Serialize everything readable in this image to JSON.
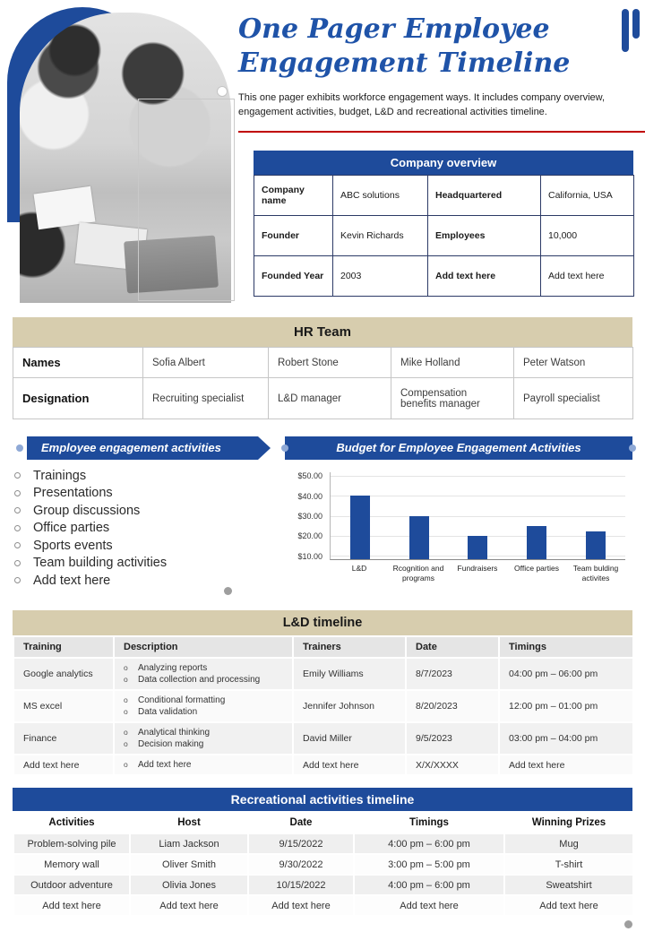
{
  "header": {
    "title_line1": "One Pager Employee",
    "title_line2": "Engagement Timeline",
    "description": "This one pager exhibits workforce engagement ways. It includes company overview, engagement activities, budget, L&D and recreational activities timeline."
  },
  "company_overview": {
    "title": "Company overview",
    "rows": [
      [
        "Company name",
        "ABC solutions",
        "Headquartered",
        "California, USA"
      ],
      [
        "Founder",
        "Kevin Richards",
        "Employees",
        "10,000"
      ],
      [
        "Founded Year",
        "2003",
        "Add text here",
        "Add text here"
      ]
    ]
  },
  "hr_team": {
    "title": "HR Team",
    "names_label": "Names",
    "names": [
      "Sofia Albert",
      "Robert Stone",
      "Mike Holland",
      "Peter Watson"
    ],
    "designation_label": "Designation",
    "designations": [
      "Recruiting specialist",
      "L&D manager",
      "Compensation benefits manager",
      "Payroll specialist"
    ]
  },
  "engagement_activities": {
    "title": "Employee engagement activities",
    "items": [
      "Trainings",
      "Presentations",
      "Group discussions",
      "Office parties",
      "Sports events",
      "Team building activities",
      "Add text here"
    ]
  },
  "chart_data": {
    "type": "bar",
    "title": "Budget for Employee Engagement Activities",
    "categories": [
      "L&D",
      "Rcognition and programs",
      "Fundraisers",
      "Office parties",
      "Team bulding activites"
    ],
    "values": [
      40,
      30,
      20,
      25,
      22
    ],
    "xlabel": "",
    "ylabel": "",
    "ytick_labels": [
      "$50.00",
      "$40.00",
      "$30.00",
      "$20.00",
      "$10.00"
    ],
    "ylim": [
      0,
      50
    ],
    "grid": true,
    "legend": false,
    "bar_color": "#1e4b9b"
  },
  "ld_timeline": {
    "title": "L&D timeline",
    "columns": [
      "Training",
      "Description",
      "Trainers",
      "Date",
      "Timings"
    ],
    "rows": [
      {
        "training": "Google analytics",
        "descriptions": [
          "Analyzing reports",
          "Data collection and processing"
        ],
        "trainer": "Emily Williams",
        "date": "8/7/2023",
        "timings": "04:00 pm – 06:00 pm"
      },
      {
        "training": "MS excel",
        "descriptions": [
          "Conditional formatting",
          "Data validation"
        ],
        "trainer": "Jennifer Johnson",
        "date": "8/20/2023",
        "timings": "12:00 pm – 01:00 pm"
      },
      {
        "training": "Finance",
        "descriptions": [
          "Analytical thinking",
          "Decision making"
        ],
        "trainer": "David Miller",
        "date": "9/5/2023",
        "timings": "03:00 pm – 04:00 pm"
      },
      {
        "training": "Add text here",
        "descriptions": [
          "Add text here"
        ],
        "trainer": "Add text here",
        "date": "X/X/XXXX",
        "timings": "Add text here"
      }
    ]
  },
  "recreational_timeline": {
    "title": "Recreational activities timeline",
    "columns": [
      "Activities",
      "Host",
      "Date",
      "Timings",
      "Winning Prizes"
    ],
    "rows": [
      [
        "Problem-solving pile",
        "Liam Jackson",
        "9/15/2022",
        "4:00 pm – 6:00 pm",
        "Mug"
      ],
      [
        "Memory wall",
        "Oliver Smith",
        "9/30/2022",
        "3:00 pm – 5:00 pm",
        "T-shirt"
      ],
      [
        "Outdoor adventure",
        "Olivia Jones",
        "10/15/2022",
        "4:00 pm – 6:00 pm",
        "Sweatshirt"
      ],
      [
        "Add text here",
        "Add text here",
        "Add text here",
        "Add text here",
        "Add text here"
      ]
    ]
  },
  "colors": {
    "primary_blue": "#1e4b9b",
    "beige": "#d7cdae",
    "red_line": "#c00000"
  }
}
